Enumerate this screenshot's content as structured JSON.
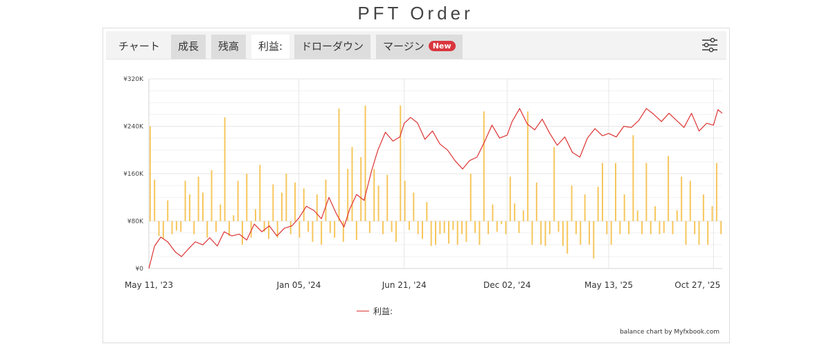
{
  "page": {
    "title": "PFT Order"
  },
  "tabs": [
    {
      "label": "チャート"
    },
    {
      "label": "成長"
    },
    {
      "label": "残高"
    },
    {
      "label": "利益:"
    },
    {
      "label": "ドローダウン"
    },
    {
      "label": "マージン",
      "badge": "New"
    }
  ],
  "settings_icon": "sliders-icon",
  "colors": {
    "line": "#dd3333",
    "bars": "#f6c65b",
    "grid": "#e6e6e6"
  },
  "chart_data": {
    "type": "line",
    "title": "",
    "xlabel": "",
    "ylabel": "",
    "ylim": [
      0,
      320000
    ],
    "xlim": [
      "2023-05-11",
      "2025-11-10"
    ],
    "y_ticks": [
      {
        "value": 0,
        "label": "¥0"
      },
      {
        "value": 80000,
        "label": "¥80K"
      },
      {
        "value": 160000,
        "label": "¥160K"
      },
      {
        "value": 240000,
        "label": "¥240K"
      },
      {
        "value": 320000,
        "label": "¥320K"
      }
    ],
    "x_ticks": [
      {
        "date": "2023-05-11",
        "label": "May 11, '23"
      },
      {
        "date": "2024-01-05",
        "label": "Jan 05, '24"
      },
      {
        "date": "2024-06-21",
        "label": "Jun 21, '24"
      },
      {
        "date": "2024-12-02",
        "label": "Dec 02, '24"
      },
      {
        "date": "2025-05-13",
        "label": "May 13, '25"
      },
      {
        "date": "2025-10-27",
        "label": "Oct 27, '25"
      }
    ],
    "grid": true,
    "legend": {
      "position": "bottom-center"
    },
    "series": [
      {
        "name": "利益:",
        "type": "line",
        "points": [
          [
            "2023-05-11",
            0
          ],
          [
            "2023-05-20",
            38000
          ],
          [
            "2023-05-30",
            53000
          ],
          [
            "2023-06-10",
            45000
          ],
          [
            "2023-06-22",
            28000
          ],
          [
            "2023-07-02",
            20000
          ],
          [
            "2023-07-12",
            32000
          ],
          [
            "2023-07-24",
            45000
          ],
          [
            "2023-08-05",
            40000
          ],
          [
            "2023-08-16",
            52000
          ],
          [
            "2023-08-28",
            38000
          ],
          [
            "2023-09-08",
            62000
          ],
          [
            "2023-09-20",
            55000
          ],
          [
            "2023-10-02",
            58000
          ],
          [
            "2023-10-14",
            48000
          ],
          [
            "2023-10-26",
            75000
          ],
          [
            "2023-11-07",
            62000
          ],
          [
            "2023-11-19",
            72000
          ],
          [
            "2023-12-01",
            55000
          ],
          [
            "2023-12-13",
            68000
          ],
          [
            "2023-12-25",
            72000
          ],
          [
            "2024-01-05",
            85000
          ],
          [
            "2024-01-17",
            105000
          ],
          [
            "2024-01-29",
            98000
          ],
          [
            "2024-02-10",
            84000
          ],
          [
            "2024-02-22",
            120000
          ],
          [
            "2024-03-05",
            92000
          ],
          [
            "2024-03-17",
            70000
          ],
          [
            "2024-03-26",
            100000
          ],
          [
            "2024-04-06",
            125000
          ],
          [
            "2024-04-18",
            115000
          ],
          [
            "2024-04-30",
            165000
          ],
          [
            "2024-05-10",
            200000
          ],
          [
            "2024-05-22",
            230000
          ],
          [
            "2024-06-03",
            215000
          ],
          [
            "2024-06-14",
            222000
          ],
          [
            "2024-06-21",
            245000
          ],
          [
            "2024-07-01",
            255000
          ],
          [
            "2024-07-12",
            246000
          ],
          [
            "2024-07-24",
            218000
          ],
          [
            "2024-08-05",
            232000
          ],
          [
            "2024-08-17",
            210000
          ],
          [
            "2024-08-29",
            200000
          ],
          [
            "2024-09-10",
            182000
          ],
          [
            "2024-09-22",
            168000
          ],
          [
            "2024-10-03",
            182000
          ],
          [
            "2024-10-15",
            188000
          ],
          [
            "2024-10-27",
            214000
          ],
          [
            "2024-11-08",
            242000
          ],
          [
            "2024-11-20",
            220000
          ],
          [
            "2024-12-02",
            225000
          ],
          [
            "2024-12-10",
            248000
          ],
          [
            "2024-12-22",
            270000
          ],
          [
            "2025-01-03",
            244000
          ],
          [
            "2025-01-15",
            234000
          ],
          [
            "2025-01-27",
            252000
          ],
          [
            "2025-02-08",
            228000
          ],
          [
            "2025-02-20",
            208000
          ],
          [
            "2025-03-04",
            222000
          ],
          [
            "2025-03-16",
            196000
          ],
          [
            "2025-03-28",
            188000
          ],
          [
            "2025-04-09",
            220000
          ],
          [
            "2025-04-21",
            236000
          ],
          [
            "2025-05-03",
            224000
          ],
          [
            "2025-05-13",
            228000
          ],
          [
            "2025-05-25",
            222000
          ],
          [
            "2025-06-06",
            240000
          ],
          [
            "2025-06-18",
            238000
          ],
          [
            "2025-06-30",
            250000
          ],
          [
            "2025-07-12",
            270000
          ],
          [
            "2025-07-24",
            260000
          ],
          [
            "2025-08-05",
            248000
          ],
          [
            "2025-08-17",
            262000
          ],
          [
            "2025-08-29",
            250000
          ],
          [
            "2025-09-10",
            238000
          ],
          [
            "2025-09-22",
            262000
          ],
          [
            "2025-10-04",
            232000
          ],
          [
            "2025-10-16",
            245000
          ],
          [
            "2025-10-27",
            242000
          ],
          [
            "2025-11-03",
            268000
          ],
          [
            "2025-11-10",
            262000
          ]
        ]
      },
      {
        "name": "",
        "type": "bar",
        "baseline": 80000,
        "points": [
          [
            "2023-05-13",
            240000
          ],
          [
            "2023-05-20",
            150000
          ],
          [
            "2023-05-27",
            55000
          ],
          [
            "2023-06-03",
            50000
          ],
          [
            "2023-06-10",
            115000
          ],
          [
            "2023-06-17",
            58000
          ],
          [
            "2023-06-24",
            64000
          ],
          [
            "2023-07-01",
            62000
          ],
          [
            "2023-07-08",
            148000
          ],
          [
            "2023-07-15",
            125000
          ],
          [
            "2023-07-22",
            58000
          ],
          [
            "2023-07-29",
            155000
          ],
          [
            "2023-08-05",
            128000
          ],
          [
            "2023-08-12",
            52000
          ],
          [
            "2023-08-19",
            166000
          ],
          [
            "2023-08-26",
            62000
          ],
          [
            "2023-09-02",
            108000
          ],
          [
            "2023-09-09",
            255000
          ],
          [
            "2023-09-16",
            55000
          ],
          [
            "2023-09-23",
            90000
          ],
          [
            "2023-09-30",
            148000
          ],
          [
            "2023-10-07",
            40000
          ],
          [
            "2023-10-14",
            160000
          ],
          [
            "2023-10-21",
            52000
          ],
          [
            "2023-10-28",
            100000
          ],
          [
            "2023-11-04",
            175000
          ],
          [
            "2023-11-11",
            62000
          ],
          [
            "2023-11-18",
            50000
          ],
          [
            "2023-11-25",
            142000
          ],
          [
            "2023-12-02",
            52000
          ],
          [
            "2023-12-09",
            128000
          ],
          [
            "2023-12-16",
            160000
          ],
          [
            "2023-12-23",
            58000
          ],
          [
            "2023-12-30",
            145000
          ],
          [
            "2024-01-06",
            52000
          ],
          [
            "2024-01-13",
            135000
          ],
          [
            "2024-01-20",
            62000
          ],
          [
            "2024-01-27",
            45000
          ],
          [
            "2024-02-03",
            125000
          ],
          [
            "2024-02-10",
            40000
          ],
          [
            "2024-02-17",
            150000
          ],
          [
            "2024-02-24",
            60000
          ],
          [
            "2024-03-02",
            52000
          ],
          [
            "2024-03-09",
            270000
          ],
          [
            "2024-03-16",
            45000
          ],
          [
            "2024-03-23",
            168000
          ],
          [
            "2024-03-30",
            205000
          ],
          [
            "2024-04-06",
            48000
          ],
          [
            "2024-04-13",
            188000
          ],
          [
            "2024-04-20",
            275000
          ],
          [
            "2024-04-27",
            60000
          ],
          [
            "2024-05-04",
            168000
          ],
          [
            "2024-05-11",
            140000
          ],
          [
            "2024-05-18",
            58000
          ],
          [
            "2024-05-25",
            158000
          ],
          [
            "2024-06-01",
            62000
          ],
          [
            "2024-06-08",
            45000
          ],
          [
            "2024-06-15",
            275000
          ],
          [
            "2024-06-22",
            148000
          ],
          [
            "2024-06-29",
            65000
          ],
          [
            "2024-07-06",
            128000
          ],
          [
            "2024-07-13",
            58000
          ],
          [
            "2024-07-20",
            50000
          ],
          [
            "2024-07-27",
            112000
          ],
          [
            "2024-08-03",
            38000
          ],
          [
            "2024-08-10",
            40000
          ],
          [
            "2024-08-17",
            58000
          ],
          [
            "2024-08-24",
            60000
          ],
          [
            "2024-08-31",
            42000
          ],
          [
            "2024-09-07",
            65000
          ],
          [
            "2024-09-14",
            40000
          ],
          [
            "2024-09-21",
            58000
          ],
          [
            "2024-09-28",
            45000
          ],
          [
            "2024-10-05",
            160000
          ],
          [
            "2024-10-12",
            60000
          ],
          [
            "2024-10-19",
            40000
          ],
          [
            "2024-10-26",
            265000
          ],
          [
            "2024-11-02",
            58000
          ],
          [
            "2024-11-09",
            108000
          ],
          [
            "2024-11-16",
            62000
          ],
          [
            "2024-11-23",
            75000
          ],
          [
            "2024-11-30",
            58000
          ],
          [
            "2024-12-07",
            155000
          ],
          [
            "2024-12-14",
            110000
          ],
          [
            "2024-12-21",
            60000
          ],
          [
            "2024-12-28",
            98000
          ],
          [
            "2025-01-04",
            265000
          ],
          [
            "2025-01-11",
            40000
          ],
          [
            "2025-01-18",
            145000
          ],
          [
            "2025-01-25",
            40000
          ],
          [
            "2025-02-01",
            38000
          ],
          [
            "2025-02-08",
            58000
          ],
          [
            "2025-02-15",
            205000
          ],
          [
            "2025-02-22",
            62000
          ],
          [
            "2025-03-01",
            38000
          ],
          [
            "2025-03-08",
            25000
          ],
          [
            "2025-03-15",
            140000
          ],
          [
            "2025-03-22",
            58000
          ],
          [
            "2025-03-29",
            40000
          ],
          [
            "2025-04-05",
            125000
          ],
          [
            "2025-04-12",
            40000
          ],
          [
            "2025-04-19",
            17000
          ],
          [
            "2025-04-26",
            138000
          ],
          [
            "2025-05-03",
            178000
          ],
          [
            "2025-05-10",
            58000
          ],
          [
            "2025-05-17",
            40000
          ],
          [
            "2025-05-24",
            178000
          ],
          [
            "2025-05-31",
            58000
          ],
          [
            "2025-06-07",
            125000
          ],
          [
            "2025-06-14",
            58000
          ],
          [
            "2025-06-21",
            225000
          ],
          [
            "2025-06-28",
            98000
          ],
          [
            "2025-07-05",
            58000
          ],
          [
            "2025-07-12",
            178000
          ],
          [
            "2025-07-19",
            58000
          ],
          [
            "2025-07-26",
            105000
          ],
          [
            "2025-08-02",
            58000
          ],
          [
            "2025-08-09",
            60000
          ],
          [
            "2025-08-16",
            190000
          ],
          [
            "2025-08-23",
            58000
          ],
          [
            "2025-08-30",
            98000
          ],
          [
            "2025-09-06",
            155000
          ],
          [
            "2025-09-13",
            40000
          ],
          [
            "2025-09-20",
            148000
          ],
          [
            "2025-09-27",
            58000
          ],
          [
            "2025-10-04",
            40000
          ],
          [
            "2025-10-11",
            125000
          ],
          [
            "2025-10-18",
            40000
          ],
          [
            "2025-10-25",
            105000
          ],
          [
            "2025-11-01",
            178000
          ],
          [
            "2025-11-08",
            58000
          ]
        ]
      }
    ]
  },
  "legend_items": [
    {
      "label": "利益:"
    }
  ],
  "credits": "balance chart by Myfxbook.com"
}
